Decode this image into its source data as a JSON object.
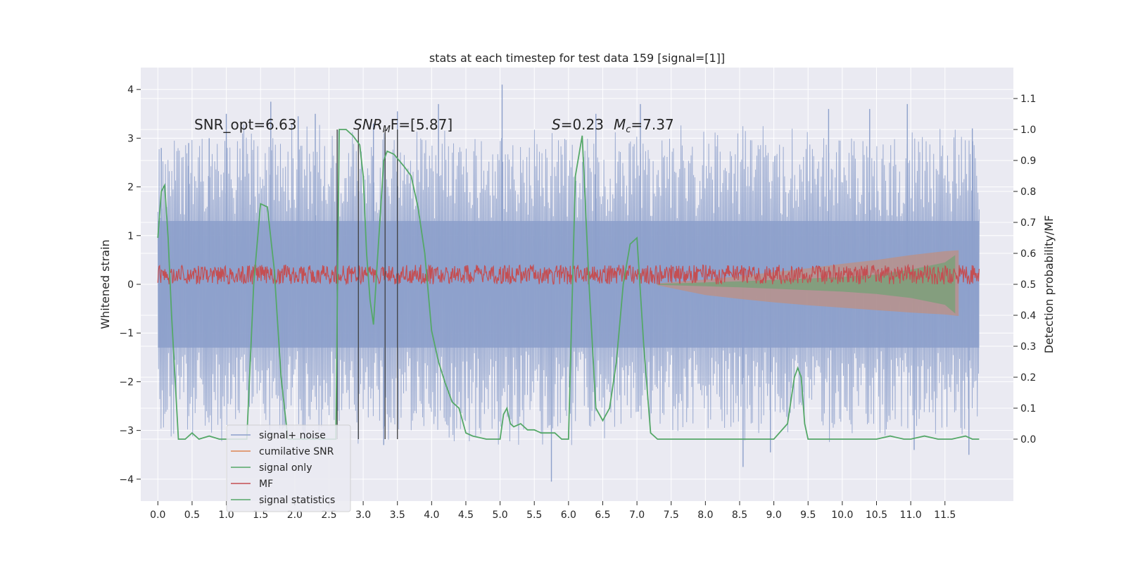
{
  "chart_data": {
    "type": "line",
    "title": "stats at each timestep for test data 159 [signal=[1]]",
    "ylabel": "Whitened strain",
    "y2label": "Detection probability/MF",
    "xlim": [
      -0.25,
      12.5
    ],
    "ylim": [
      -4.45,
      4.45
    ],
    "y2lim": [
      -0.2,
      1.2
    ],
    "grid": true,
    "legend_position": "lower-left",
    "x_ticks": [
      "0.0",
      "0.5",
      "1.0",
      "1.5",
      "2.0",
      "2.5",
      "3.0",
      "3.5",
      "4.0",
      "4.5",
      "5.0",
      "5.5",
      "6.0",
      "6.5",
      "7.0",
      "7.5",
      "8.0",
      "8.5",
      "9.0",
      "9.5",
      "10.0",
      "10.5",
      "11.0",
      "11.5"
    ],
    "y_ticks": [
      "4",
      "3",
      "2",
      "1",
      "0",
      "−1",
      "−2",
      "−3",
      "−4"
    ],
    "y2_ticks": [
      "1.1",
      "1.0",
      "0.9",
      "0.8",
      "0.7",
      "0.6",
      "0.5",
      "0.4",
      "0.3",
      "0.2",
      "0.1",
      "0.0"
    ],
    "annotations": {
      "snr_opt": "SNR_opt=6.63",
      "snr_mf_main": "SNR",
      "snr_mf_sub": "M",
      "snr_mf_rest": "F=[5.87]",
      "s_main": "S",
      "s_rest": "=0.23",
      "mc_main": "M",
      "mc_sub": "c",
      "mc_rest": "=7.37"
    },
    "vertical_markers_x": [
      2.62,
      2.93,
      3.32,
      3.5
    ],
    "legend": [
      {
        "label": "signal+ noise",
        "color": "#8da0cb"
      },
      {
        "label": "cumilative SNR",
        "color": "#dd8452"
      },
      {
        "label": "signal only",
        "color": "#55a868"
      },
      {
        "label": "MF",
        "color": "#c44e52"
      },
      {
        "label": "signal statistics",
        "color": "#55a868"
      }
    ],
    "series": [
      {
        "name": "signal+ noise",
        "color": "#8da0cb",
        "x_range": [
          0,
          12
        ],
        "envelope_typical": 3.0,
        "peaks": [
          [
            0.05,
            2.8
          ],
          [
            0.45,
            2.9
          ],
          [
            0.75,
            3.0
          ],
          [
            1.0,
            3.5
          ],
          [
            1.65,
            3.75
          ],
          [
            2.05,
            3.45
          ],
          [
            2.3,
            3.5
          ],
          [
            3.15,
            3.3
          ],
          [
            3.3,
            -3.3
          ],
          [
            3.5,
            3.55
          ],
          [
            4.1,
            3.7
          ],
          [
            5.03,
            4.1
          ],
          [
            5.75,
            -4.05
          ],
          [
            6.4,
            3.5
          ],
          [
            7.05,
            3.7
          ],
          [
            8.55,
            -3.75
          ],
          [
            8.95,
            -3.45
          ],
          [
            9.8,
            3.6
          ],
          [
            10.4,
            3.6
          ],
          [
            10.95,
            3.7
          ],
          [
            11.05,
            -3.4
          ],
          [
            11.9,
            3.2
          ],
          [
            11.85,
            -3.5
          ]
        ]
      },
      {
        "name": "MF",
        "color": "#c44e52",
        "baseline": 0.2,
        "amplitude": 0.2,
        "x_range": [
          0,
          12
        ]
      },
      {
        "name": "cumilative SNR",
        "color": "#dd8452",
        "x": [
          7.3,
          8.0,
          8.5,
          9.0,
          9.5,
          10.0,
          10.5,
          11.0,
          11.5,
          11.7
        ],
        "upper": [
          0.02,
          0.1,
          0.17,
          0.25,
          0.33,
          0.42,
          0.5,
          0.6,
          0.68,
          0.7
        ],
        "lower": [
          -0.02,
          -0.22,
          -0.3,
          -0.37,
          -0.43,
          -0.48,
          -0.53,
          -0.58,
          -0.62,
          -0.65
        ]
      },
      {
        "name": "signal only",
        "color": "#55a868",
        "x": [
          7.3,
          8.0,
          8.5,
          9.0,
          9.5,
          10.0,
          10.5,
          11.0,
          11.5,
          11.65
        ],
        "upper": [
          0.01,
          0.04,
          0.06,
          0.09,
          0.12,
          0.15,
          0.2,
          0.3,
          0.45,
          0.6
        ],
        "lower": [
          -0.01,
          -0.04,
          -0.06,
          -0.09,
          -0.12,
          -0.15,
          -0.2,
          -0.28,
          -0.42,
          -0.6
        ]
      },
      {
        "name": "signal statistics",
        "color": "#55a868",
        "axis": "right",
        "x": [
          0.0,
          0.05,
          0.1,
          0.15,
          0.2,
          0.3,
          0.4,
          0.5,
          0.6,
          0.75,
          0.9,
          1.1,
          1.3,
          1.4,
          1.5,
          1.6,
          1.7,
          1.8,
          1.9,
          2.0,
          2.1,
          2.2,
          2.3,
          2.4,
          2.5,
          2.6,
          2.65,
          2.75,
          2.85,
          2.95,
          3.0,
          3.05,
          3.1,
          3.15,
          3.2,
          3.3,
          3.35,
          3.45,
          3.6,
          3.7,
          3.75,
          3.8,
          3.9,
          4.0,
          4.1,
          4.2,
          4.3,
          4.4,
          4.5,
          4.6,
          4.8,
          5.0,
          5.05,
          5.1,
          5.15,
          5.2,
          5.3,
          5.4,
          5.5,
          5.6,
          5.8,
          5.9,
          6.0,
          6.1,
          6.2,
          6.3,
          6.4,
          6.5,
          6.6,
          6.7,
          6.8,
          6.9,
          7.0,
          7.1,
          7.2,
          7.3,
          7.5,
          8.0,
          8.5,
          9.0,
          9.2,
          9.3,
          9.35,
          9.4,
          9.45,
          9.5,
          9.6,
          9.8,
          10.0,
          10.5,
          10.7,
          10.9,
          11.0,
          11.2,
          11.4,
          11.6,
          11.8,
          11.9,
          12.0
        ],
        "y": [
          0.65,
          0.8,
          0.82,
          0.65,
          0.4,
          0.0,
          0.0,
          0.02,
          0.0,
          0.01,
          0.0,
          0.0,
          0.0,
          0.5,
          0.76,
          0.75,
          0.55,
          0.2,
          0.0,
          0.0,
          0.0,
          0.0,
          0.0,
          0.0,
          0.0,
          0.0,
          1.0,
          1.0,
          0.98,
          0.95,
          0.85,
          0.6,
          0.45,
          0.37,
          0.55,
          0.9,
          0.93,
          0.92,
          0.88,
          0.85,
          0.8,
          0.75,
          0.6,
          0.35,
          0.25,
          0.18,
          0.12,
          0.1,
          0.02,
          0.01,
          0.0,
          0.0,
          0.08,
          0.1,
          0.05,
          0.04,
          0.05,
          0.03,
          0.03,
          0.02,
          0.02,
          0.0,
          0.0,
          0.85,
          0.98,
          0.5,
          0.1,
          0.06,
          0.1,
          0.25,
          0.5,
          0.63,
          0.65,
          0.3,
          0.02,
          0.0,
          0.0,
          0.0,
          0.0,
          0.0,
          0.05,
          0.2,
          0.23,
          0.2,
          0.05,
          0.0,
          0.0,
          0.0,
          0.0,
          0.0,
          0.01,
          0.0,
          0.0,
          0.01,
          0.0,
          0.0,
          0.01,
          0.0,
          0.0
        ]
      }
    ]
  }
}
